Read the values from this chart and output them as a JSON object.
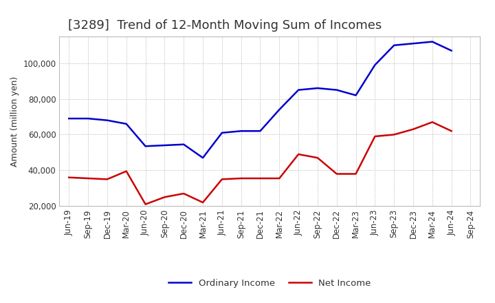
{
  "title": "[3289]  Trend of 12-Month Moving Sum of Incomes",
  "ylabel": "Amount (million yen)",
  "x_labels": [
    "Jun-19",
    "Sep-19",
    "Dec-19",
    "Mar-20",
    "Jun-20",
    "Sep-20",
    "Dec-20",
    "Mar-21",
    "Jun-21",
    "Sep-21",
    "Dec-21",
    "Mar-22",
    "Jun-22",
    "Sep-22",
    "Dec-22",
    "Mar-23",
    "Jun-23",
    "Sep-23",
    "Dec-23",
    "Mar-24",
    "Jun-24",
    "Sep-24"
  ],
  "ordinary_income": [
    69000,
    69000,
    68000,
    66000,
    53500,
    54000,
    54500,
    47000,
    61000,
    62000,
    62000,
    74000,
    85000,
    86000,
    85000,
    82000,
    99000,
    110000,
    111000,
    112000,
    107000,
    null
  ],
  "net_income": [
    36000,
    35500,
    35000,
    39500,
    21000,
    25000,
    27000,
    22000,
    35000,
    35500,
    35500,
    35500,
    49000,
    47000,
    38000,
    38000,
    59000,
    60000,
    63000,
    67000,
    62000,
    null
  ],
  "ylim": [
    20000,
    115000
  ],
  "yticks": [
    20000,
    40000,
    60000,
    80000,
    100000
  ],
  "ordinary_color": "#0000cc",
  "net_color": "#cc0000",
  "background_color": "#ffffff",
  "grid_color": "#999999",
  "title_fontsize": 13,
  "title_color": "#333333",
  "axis_label_fontsize": 9,
  "tick_fontsize": 8.5,
  "legend_fontsize": 9.5
}
